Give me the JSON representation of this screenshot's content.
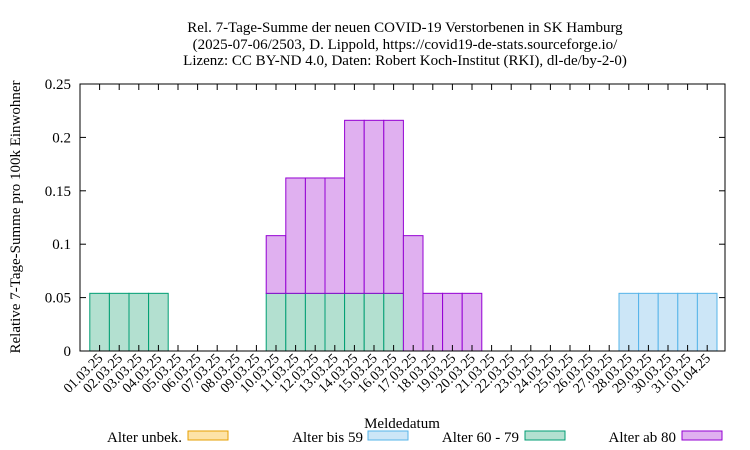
{
  "chart_data": {
    "type": "bar",
    "stacked": true,
    "title_lines": [
      "Rel. 7-Tage-Summe der neuen COVID-19 Verstorbenen in SK Hamburg",
      "(2025-07-06/2503, D. Lippold, https://covid19-de-stats.sourceforge.io/",
      "Lizenz: CC BY-ND 4.0, Daten: Robert Koch-Institut (RKI), dl-de/by-2-0)"
    ],
    "xlabel": "Meldedatum",
    "ylabel": "Relative 7-Tage-Summe pro 100k Einwohner",
    "ylim": [
      0,
      0.25
    ],
    "yticks": [
      0,
      0.05,
      0.1,
      0.15,
      0.2,
      0.25
    ],
    "ytick_labels": [
      "0",
      "0.05",
      "0.1",
      "0.15",
      "0.2",
      "0.25"
    ],
    "grid": false,
    "legend_position": "bottom",
    "categories": [
      "01.03.25",
      "02.03.25",
      "03.03.25",
      "04.03.25",
      "05.03.25",
      "06.03.25",
      "07.03.25",
      "08.03.25",
      "09.03.25",
      "10.03.25",
      "11.03.25",
      "12.03.25",
      "13.03.25",
      "14.03.25",
      "15.03.25",
      "16.03.25",
      "17.03.25",
      "18.03.25",
      "19.03.25",
      "20.03.25",
      "21.03.25",
      "22.03.25",
      "23.03.25",
      "24.03.25",
      "25.03.25",
      "26.03.25",
      "27.03.25",
      "28.03.25",
      "29.03.25",
      "30.03.25",
      "31.03.25",
      "01.04.25"
    ],
    "series": [
      {
        "name": "Alter unbek.",
        "fill": "#fde3a7",
        "stroke": "#e69f00",
        "values": [
          0,
          0,
          0,
          0,
          0,
          0,
          0,
          0,
          0,
          0,
          0,
          0,
          0,
          0,
          0,
          0,
          0,
          0,
          0,
          0,
          0,
          0,
          0,
          0,
          0,
          0,
          0,
          0,
          0,
          0,
          0,
          0
        ]
      },
      {
        "name": "Alter bis 59",
        "fill": "#cce6f7",
        "stroke": "#56b4e9",
        "values": [
          0,
          0,
          0,
          0,
          0,
          0,
          0,
          0,
          0,
          0,
          0,
          0,
          0,
          0,
          0,
          0,
          0,
          0,
          0,
          0,
          0,
          0,
          0,
          0,
          0,
          0,
          0,
          0.054,
          0.054,
          0.054,
          0.054,
          0.054
        ]
      },
      {
        "name": "Alter 60 - 79",
        "fill": "#b3e0d0",
        "stroke": "#009e73",
        "values": [
          0.054,
          0.054,
          0.054,
          0.054,
          0,
          0,
          0,
          0,
          0,
          0.054,
          0.054,
          0.054,
          0.054,
          0.054,
          0.054,
          0.054,
          0,
          0,
          0,
          0,
          0,
          0,
          0,
          0,
          0,
          0,
          0,
          0,
          0,
          0,
          0,
          0
        ]
      },
      {
        "name": "Alter ab 80",
        "fill": "#e0b0f0",
        "stroke": "#9400d3",
        "values": [
          0,
          0,
          0,
          0,
          0,
          0,
          0,
          0,
          0,
          0.054,
          0.108,
          0.108,
          0.108,
          0.162,
          0.162,
          0.162,
          0.108,
          0.054,
          0.054,
          0.054,
          0,
          0,
          0,
          0,
          0,
          0,
          0,
          0,
          0,
          0,
          0,
          0
        ]
      }
    ]
  }
}
